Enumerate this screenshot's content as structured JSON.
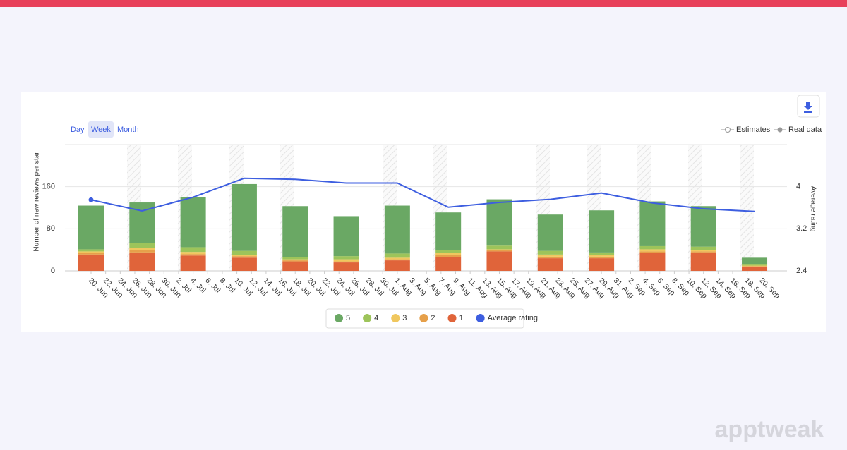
{
  "controls": [
    "Day",
    "Week",
    "Month"
  ],
  "status_legend": [
    "Estimates",
    "Real data"
  ],
  "brand": "apptweak",
  "chart_data": {
    "type": "bar",
    "y_label": "Number of new reviews per star",
    "y2_label": "Average rating",
    "xticks": [
      "20. Jun",
      "22. Jun",
      "24. Jun",
      "26. Jun",
      "28. Jun",
      "30. Jun",
      "2. Jul",
      "4. Jul",
      "6. Jul",
      "8. Jul",
      "10. Jul",
      "12. Jul",
      "14. Jul",
      "16. Jul",
      "18. Jul",
      "20. Jul",
      "22. Jul",
      "24. Jul",
      "26. Jul",
      "28. Jul",
      "30. Jul",
      "1. Aug",
      "3. Aug",
      "5. Aug",
      "7. Aug",
      "9. Aug",
      "11. Aug",
      "13. Aug",
      "15. Aug",
      "17. Aug",
      "19. Aug",
      "21. Aug",
      "23. Aug",
      "25. Aug",
      "27. Aug",
      "29. Aug",
      "31. Aug",
      "2. Sep",
      "4. Sep",
      "6. Sep",
      "8. Sep",
      "10. Sep",
      "12. Sep",
      "14. Sep",
      "16. Sep",
      "18. Sep",
      "20. Sep"
    ],
    "ylim": [
      0,
      240
    ],
    "yticks": [
      0,
      80,
      160
    ],
    "y2lim": [
      2.4,
      4.8
    ],
    "y2ticks": [
      2.4,
      3.2,
      4
    ],
    "grid": true,
    "stacked": true,
    "series": [
      {
        "name": "5",
        "color": "#6aa864",
        "values": [
          83,
          77,
          95,
          127,
          97,
          76,
          91,
          72,
          88,
          69,
          80,
          85,
          77,
          13
        ]
      },
      {
        "name": "4",
        "color": "#9dc45a",
        "values": [
          4,
          10,
          9,
          8,
          4,
          6,
          8,
          5,
          7,
          7,
          5,
          6,
          7,
          2
        ]
      },
      {
        "name": "3",
        "color": "#f0c75e",
        "values": [
          3,
          4,
          4,
          2,
          2,
          4,
          3,
          4,
          2,
          4,
          3,
          4,
          2,
          1
        ]
      },
      {
        "name": "2",
        "color": "#e6a04a",
        "values": [
          3,
          4,
          3,
          3,
          2,
          2,
          2,
          4,
          2,
          3,
          3,
          3,
          2,
          1
        ]
      },
      {
        "name": "1",
        "color": "#e0643a",
        "values": [
          31,
          35,
          29,
          25,
          18,
          16,
          20,
          26,
          37,
          24,
          24,
          34,
          35,
          8
        ]
      },
      {
        "name": "Average rating",
        "color": "#3d5ee0",
        "type": "line",
        "axis": "y2",
        "values": [
          3.75,
          3.54,
          3.8,
          4.16,
          4.14,
          4.07,
          4.07,
          3.61,
          3.7,
          3.76,
          3.88,
          3.69,
          3.58,
          3.53
        ]
      }
    ]
  }
}
